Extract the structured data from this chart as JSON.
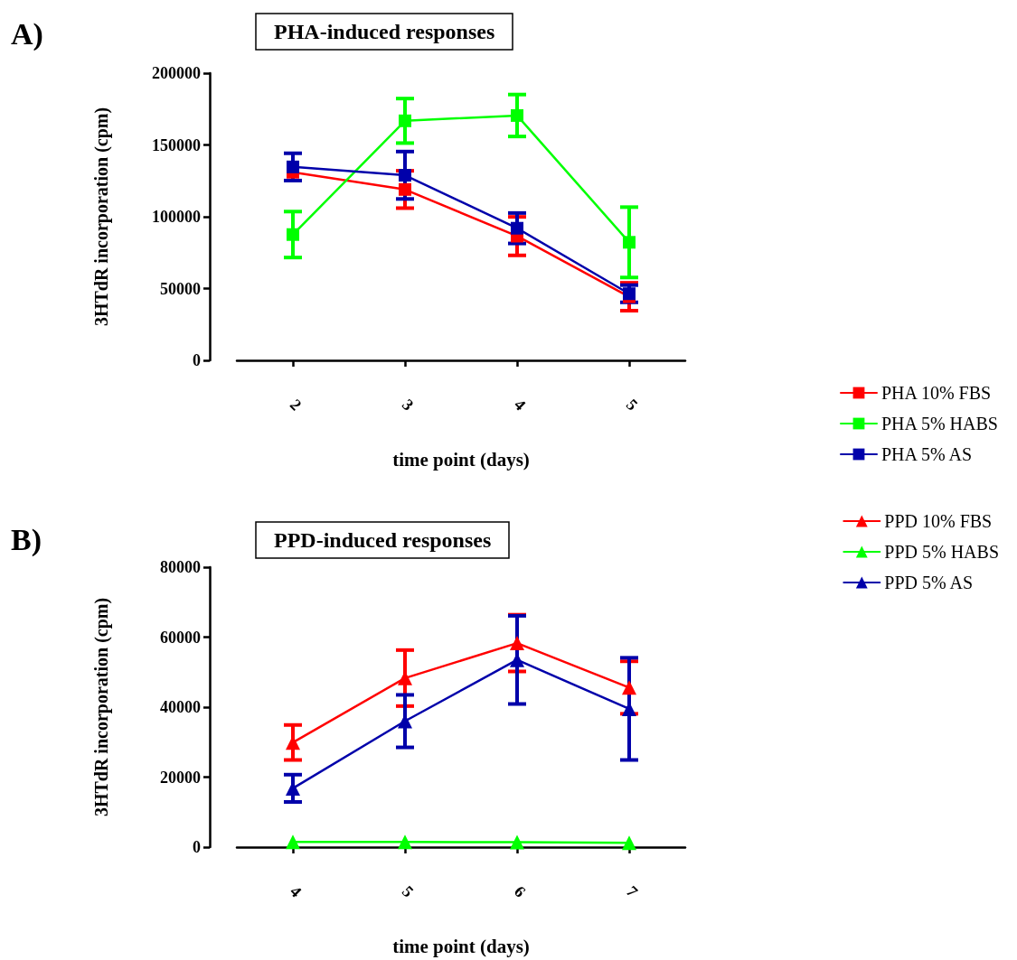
{
  "chart_data": [
    {
      "type": "line",
      "title": "PHA-induced responses",
      "xlabel": "time point (days)",
      "ylabel": "3HTdR incorporation (cpm)",
      "categories": [
        "2",
        "3",
        "4",
        "5"
      ],
      "marker": "square",
      "legend": "bottom right",
      "grid": false,
      "ylim": [
        0,
        200000
      ],
      "yticks": [
        0,
        50000,
        100000,
        150000,
        200000
      ],
      "annotations": [
        "A)"
      ],
      "series": [
        {
          "name": "PHA 10% FBS",
          "color": "#ff0000",
          "values": [
            131000,
            119000,
            86500,
            44300
          ],
          "errors": [
            null,
            13000,
            13400,
            9700
          ]
        },
        {
          "name": "PHA 5% HABS",
          "color": "#00ff00",
          "values": [
            87600,
            166800,
            170500,
            82200
          ],
          "errors": [
            16000,
            15500,
            14600,
            24500
          ]
        },
        {
          "name": "PHA 5% AS",
          "color": "#0000aa",
          "values": [
            134700,
            128900,
            92000,
            46400
          ],
          "errors": [
            9500,
            16500,
            10600,
            6000
          ]
        }
      ]
    },
    {
      "type": "line",
      "title": "PPD-induced responses",
      "xlabel": "time point (days)",
      "ylabel": "3HTdR incorporation (cpm)",
      "categories": [
        "4",
        "5",
        "6",
        "7"
      ],
      "marker": "triangle",
      "legend": "top right",
      "grid": false,
      "ylim": [
        0,
        80000
      ],
      "yticks": [
        0,
        20000,
        40000,
        60000,
        80000
      ],
      "annotations": [
        "B)"
      ],
      "series": [
        {
          "name": "PPD 10% FBS",
          "color": "#ff0000",
          "values": [
            29900,
            48300,
            58300,
            45600
          ],
          "errors": [
            5000,
            8000,
            8100,
            7500
          ]
        },
        {
          "name": "PPD 5% HABS",
          "color": "#00ff00",
          "values": [
            1500,
            1500,
            1400,
            1200
          ]
        },
        {
          "name": "PPD 5% AS",
          "color": "#0000aa",
          "values": [
            16800,
            36000,
            53500,
            39500
          ],
          "errors": [
            3900,
            7500,
            12600,
            14600
          ]
        }
      ]
    }
  ]
}
